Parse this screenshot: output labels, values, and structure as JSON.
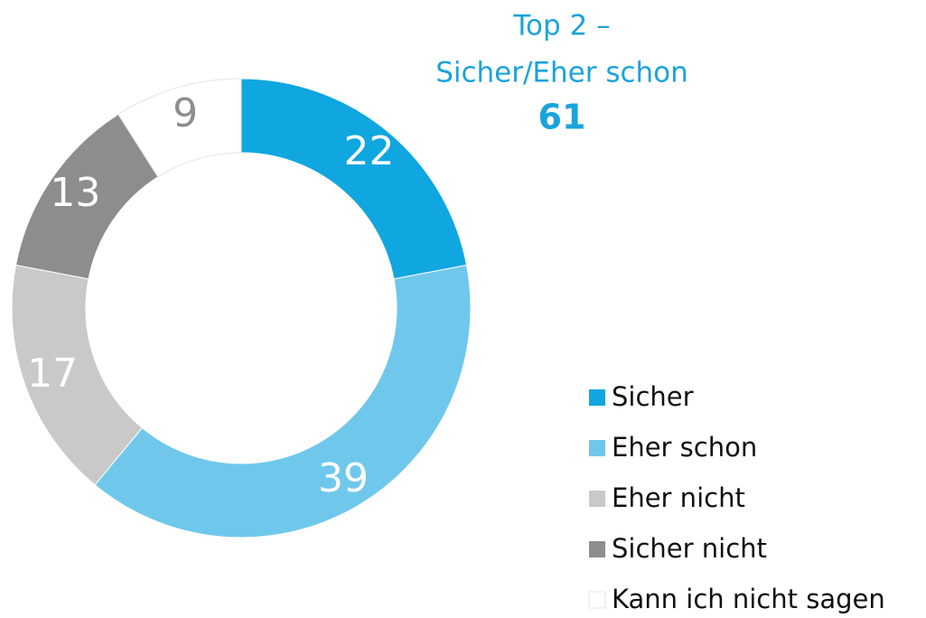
{
  "chart_data": {
    "type": "donut",
    "annotation_lines": [
      "Top 2 –",
      "Sicher/Eher schon"
    ],
    "annotation_value": 61,
    "annotation_color": "#1aa3dc",
    "series": [
      {
        "name": "Sicher",
        "color": "#10a6e0",
        "values": [
          22
        ]
      },
      {
        "name": "Eher schon",
        "color": "#6fc8ec",
        "values": [
          39
        ]
      },
      {
        "name": "Eher nicht",
        "color": "#c9c9c9",
        "values": [
          17
        ]
      },
      {
        "name": "Sicher nicht",
        "color": "#8d8d8d",
        "values": [
          13
        ]
      },
      {
        "name": "Kann ich nicht sagen",
        "color": "#ffffff",
        "values": [
          9
        ]
      }
    ],
    "legend": "bottom-right"
  }
}
